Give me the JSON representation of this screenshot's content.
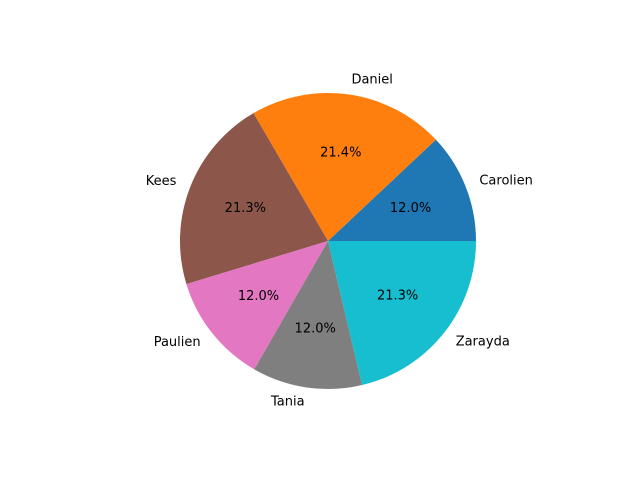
{
  "chart_data": {
    "type": "pie",
    "categories": [
      "Carolien",
      "Daniel",
      "Kees",
      "Paulien",
      "Tania",
      "Zarayda"
    ],
    "values": [
      12.0,
      21.4,
      21.3,
      12.0,
      12.0,
      21.3
    ],
    "value_labels": [
      "12.0%",
      "21.4%",
      "21.3%",
      "12.0%",
      "12.0%",
      "21.3%"
    ],
    "colors": [
      "#1f77b4",
      "#ff7f0e",
      "#8c564b",
      "#e377c2",
      "#7f7f7f",
      "#17becf"
    ],
    "start_angle_deg": 0,
    "direction": "counterclockwise",
    "legend": "none",
    "title": ""
  }
}
